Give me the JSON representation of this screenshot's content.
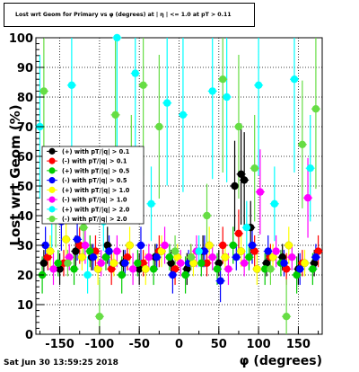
{
  "title": "Lost wrt Geom for Primary vs φ (degrees) at | η | <= 1.0 at pT > 0.11",
  "timestamp": "Sat Jun 30 13:59:25 2018",
  "chart_data": {
    "type": "scatter",
    "xlabel": "φ (degrees)",
    "ylabel": "Lost wrt Geom (%)",
    "xlim": [
      -180,
      180
    ],
    "ylim": [
      0,
      100
    ],
    "xticks": [
      -150,
      -100,
      -50,
      0,
      50,
      100,
      150
    ],
    "yticks": [
      0,
      10,
      20,
      30,
      40,
      50,
      60,
      70,
      80,
      90,
      100
    ],
    "grid": true,
    "legend_position": "left-middle",
    "series": [
      {
        "name": "(+) with pT/|q| > 0.1",
        "color": "#000000",
        "marker": "circle",
        "x": [
          -170,
          -150,
          -130,
          -110,
          -90,
          -70,
          -50,
          -30,
          -10,
          10,
          30,
          50,
          70,
          78,
          82,
          90,
          110,
          130,
          150,
          170
        ],
        "y": [
          24,
          22,
          28,
          26,
          30,
          24,
          22,
          26,
          24,
          22,
          28,
          24,
          50,
          54,
          52,
          36,
          24,
          26,
          22,
          24
        ]
      },
      {
        "name": "(-) with pT/|q| > 0.1",
        "color": "#ff0000",
        "marker": "circle",
        "x": [
          -165,
          -145,
          -125,
          -105,
          -85,
          -65,
          -45,
          -25,
          -5,
          15,
          35,
          55,
          75,
          95,
          115,
          135,
          155,
          175
        ],
        "y": [
          26,
          24,
          30,
          28,
          22,
          26,
          24,
          28,
          22,
          26,
          24,
          30,
          34,
          28,
          26,
          22,
          24,
          28
        ]
      },
      {
        "name": "(+) with pT/|q| > 0.5",
        "color": "#00cc00",
        "marker": "circle",
        "x": [
          -172,
          -152,
          -132,
          -112,
          -92,
          -72,
          -52,
          -32,
          -12,
          8,
          28,
          48,
          68,
          88,
          108,
          128,
          148,
          168
        ],
        "y": [
          20,
          24,
          22,
          28,
          26,
          20,
          24,
          22,
          26,
          20,
          24,
          22,
          30,
          26,
          22,
          24,
          20,
          22
        ]
      },
      {
        "name": "(-) with pT/|q| > 0.5",
        "color": "#0000ff",
        "marker": "circle",
        "x": [
          -168,
          -148,
          -128,
          -108,
          -88,
          -68,
          -48,
          -28,
          -8,
          12,
          32,
          52,
          72,
          92,
          112,
          132,
          152,
          172
        ],
        "y": [
          30,
          38,
          32,
          26,
          28,
          24,
          30,
          26,
          20,
          24,
          28,
          18,
          26,
          30,
          28,
          24,
          22,
          26
        ]
      },
      {
        "name": "(+) with pT/|q| > 1.0",
        "color": "#ffff00",
        "marker": "circle",
        "x": [
          -162,
          -142,
          -122,
          -102,
          -82,
          -62,
          -42,
          -22,
          -2,
          18,
          38,
          58,
          78,
          98,
          118,
          138,
          158
        ],
        "y": [
          28,
          32,
          26,
          22,
          24,
          30,
          22,
          28,
          26,
          24,
          30,
          26,
          28,
          22,
          26,
          30,
          24
        ]
      },
      {
        "name": "(-) with pT/|q| > 1.0",
        "color": "#ff00ff",
        "marker": "circle",
        "x": [
          -158,
          -138,
          -118,
          -98,
          -78,
          -58,
          -38,
          -18,
          2,
          22,
          42,
          62,
          82,
          102,
          122,
          142,
          162
        ],
        "y": [
          22,
          26,
          30,
          24,
          28,
          22,
          26,
          30,
          24,
          28,
          26,
          22,
          24,
          48,
          28,
          26,
          46
        ]
      },
      {
        "name": "(+) with pT/|q| > 2.0",
        "color": "#00ffff",
        "marker": "circle",
        "x": [
          -175,
          -160,
          -135,
          -115,
          -95,
          -78,
          -55,
          -35,
          -15,
          5,
          25,
          42,
          60,
          85,
          100,
          120,
          145,
          165
        ],
        "y": [
          70,
          40,
          84,
          20,
          38,
          100,
          88,
          44,
          78,
          74,
          28,
          82,
          80,
          36,
          84,
          44,
          86,
          56
        ]
      },
      {
        "name": "(-) with pT/|q| > 2.0",
        "color": "#66dd44",
        "marker": "circle",
        "x": [
          -170,
          -155,
          -140,
          -120,
          -100,
          -80,
          -60,
          -45,
          -25,
          -5,
          15,
          35,
          55,
          75,
          95,
          115,
          135,
          155,
          172
        ],
        "y": [
          82,
          40,
          24,
          36,
          6,
          74,
          56,
          84,
          70,
          28,
          26,
          40,
          86,
          70,
          56,
          22,
          6,
          64,
          76
        ]
      }
    ]
  }
}
